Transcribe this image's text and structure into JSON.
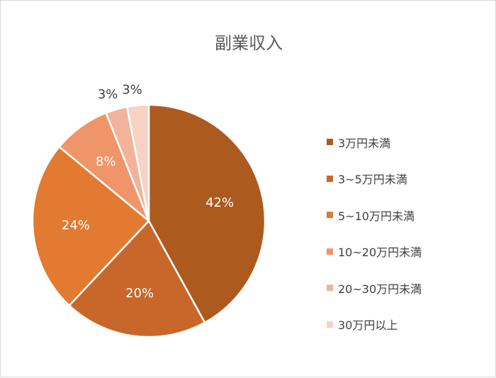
{
  "chart_data": {
    "type": "pie",
    "title": "副業収入",
    "categories": [
      "3万円未満",
      "3~5万円未満",
      "5~10万円未満",
      "10~20万円未満",
      "20~30万円未満",
      "30万円以上"
    ],
    "values": [
      42,
      20,
      24,
      8,
      3,
      3
    ],
    "data_labels": [
      "42%",
      "20%",
      "24%",
      "8%",
      "3%",
      "3%"
    ],
    "colors": [
      "#ad5a1f",
      "#c8672a",
      "#e27a31",
      "#f0956a",
      "#f3b39a",
      "#f8d2c3"
    ],
    "label_colors": [
      "#ffffff",
      "#ffffff",
      "#ffffff",
      "#ffffff",
      "#404040",
      "#404040"
    ],
    "legend_position": "right"
  }
}
